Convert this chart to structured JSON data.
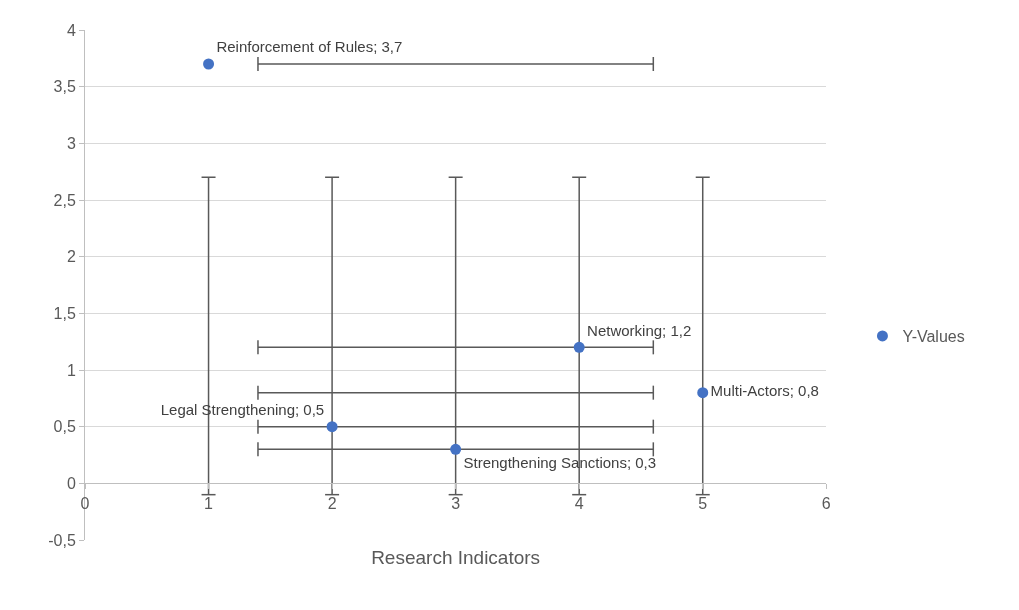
{
  "chart_data": {
    "type": "scatter",
    "xlabel": "Research Indicators",
    "x": [
      1,
      2,
      3,
      4,
      5
    ],
    "series": [
      {
        "name": "Y-Values",
        "color": "#4472c4",
        "values": [
          3.7,
          0.5,
          0.3,
          1.2,
          0.8
        ],
        "value_labels": [
          "Reinforcement of Rules; 3,7",
          "Legal Strengthening; 0,5",
          "Strengthening Sanctions; 0,3",
          "Networking; 1,2",
          "Multi-Actors; 0,8"
        ],
        "errors": [
          [
            -0.1,
            2.7
          ],
          [
            -0.1,
            2.7
          ],
          [
            -0.1,
            2.7
          ],
          [
            -0.1,
            2.7
          ],
          [
            -0.1,
            2.7
          ]
        ],
        "xerrors": [
          [
            1.4,
            4.6
          ],
          [
            1.4,
            4.6
          ],
          [
            1.4,
            4.6
          ],
          [
            1.4,
            4.6
          ],
          [
            1.4,
            4.6
          ]
        ]
      }
    ],
    "marker": "circle",
    "xlim": [
      0,
      6
    ],
    "xticks": [
      0,
      1,
      2,
      3,
      4,
      5,
      6
    ],
    "ylim": [
      -0.5,
      4
    ],
    "yticks": [
      {
        "value": -0.5,
        "label": "-0,5"
      },
      0,
      {
        "value": 0.5,
        "label": "0,5"
      },
      1,
      {
        "value": 1.5,
        "label": "1,5"
      },
      2,
      {
        "value": 2.5,
        "label": "2,5"
      },
      3,
      {
        "value": 3.5,
        "label": "3,5"
      },
      4
    ],
    "grid": "y",
    "legend": "right"
  }
}
